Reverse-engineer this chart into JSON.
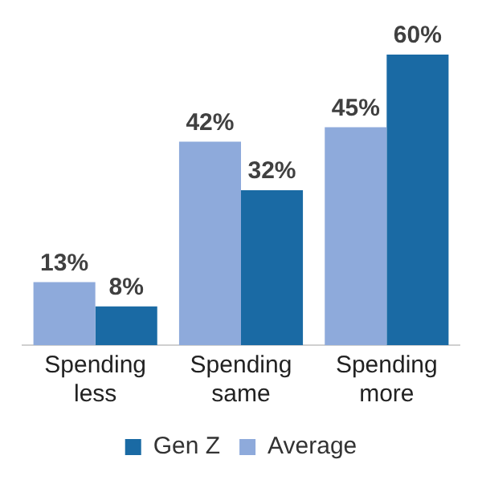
{
  "chart_data": {
    "type": "bar",
    "categories": [
      "Spending less",
      "Spending same",
      "Spending more"
    ],
    "series": [
      {
        "name": "Average",
        "color": "#8eaadb",
        "values": [
          13,
          42,
          45
        ],
        "value_labels": [
          "13%",
          "42%",
          "45%"
        ]
      },
      {
        "name": "Gen Z",
        "color": "#1a6aa4",
        "values": [
          8,
          32,
          60
        ],
        "value_labels": [
          "8%",
          "32%",
          "60%"
        ]
      }
    ],
    "legend": "bottom",
    "grid": false
  }
}
